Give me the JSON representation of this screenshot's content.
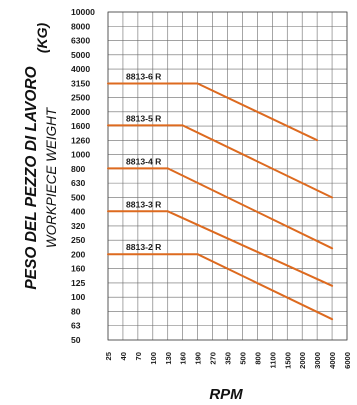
{
  "chart_data": {
    "type": "line",
    "ylabel": "PESO DEL PEZZO DI LAVORO",
    "ylabel_sub": "WORKPIECE WEIGHT",
    "yunit": "(KG)",
    "xlabel": "RPM",
    "y_scale": "log",
    "ylim": [
      50,
      10000
    ],
    "grid": true,
    "y_ticks": [
      "10000",
      "8000",
      "6300",
      "5000",
      "4000",
      "3150",
      "2500",
      "2000",
      "1600",
      "1260",
      "1000",
      "800",
      "630",
      "500",
      "400",
      "320",
      "250",
      "200",
      "160",
      "125",
      "100",
      "80",
      "63",
      "50"
    ],
    "x_ticks": [
      "25",
      "40",
      "70",
      "100",
      "130",
      "160",
      "190",
      "270",
      "350",
      "500",
      "800",
      "1100",
      "1500",
      "2000",
      "3000",
      "4000",
      "6000"
    ],
    "series": [
      {
        "name": "8813-6 R",
        "points": [
          {
            "x": "25",
            "y": 3150
          },
          {
            "x": "190",
            "y": 3150
          },
          {
            "x": "3000",
            "y": 1260
          }
        ]
      },
      {
        "name": "8813-5 R",
        "points": [
          {
            "x": "25",
            "y": 1600
          },
          {
            "x": "160",
            "y": 1600
          },
          {
            "x": "4000",
            "y": 500
          }
        ]
      },
      {
        "name": "8813-4 R",
        "points": [
          {
            "x": "25",
            "y": 800
          },
          {
            "x": "130",
            "y": 800
          },
          {
            "x": "4000",
            "y": 220
          }
        ]
      },
      {
        "name": "8813-3 R",
        "points": [
          {
            "x": "25",
            "y": 400
          },
          {
            "x": "130",
            "y": 400
          },
          {
            "x": "4000",
            "y": 120
          }
        ]
      },
      {
        "name": "8813-2 R",
        "points": [
          {
            "x": "25",
            "y": 200
          },
          {
            "x": "190",
            "y": 200
          },
          {
            "x": "4000",
            "y": 70
          }
        ]
      }
    ]
  },
  "colors": {
    "series": "#dd6a1f",
    "grid": "#6b6b6b",
    "text": "#1a1a1a"
  }
}
